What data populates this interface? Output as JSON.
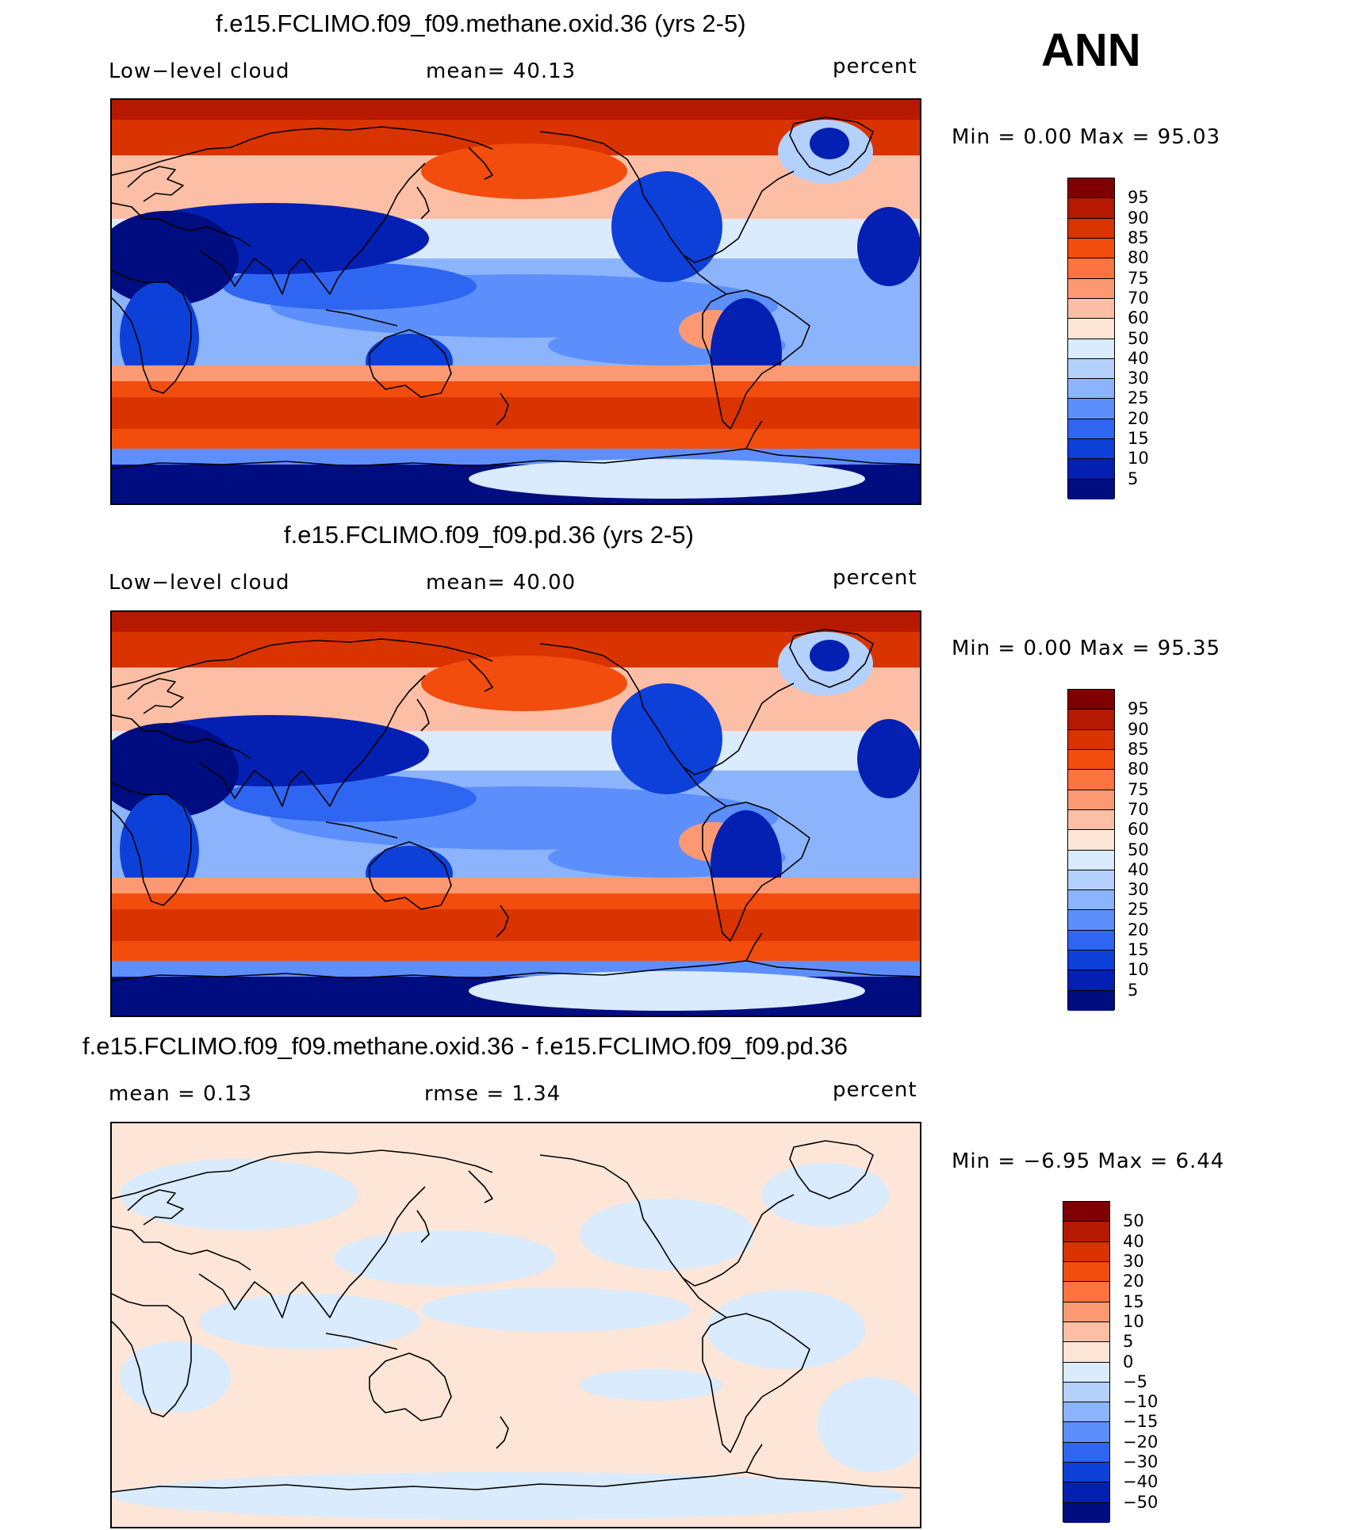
{
  "season_label": "ANN",
  "panels": [
    {
      "title": "f.e15.FCLIMO.f09_f09.methane.oxid.36 (yrs 2-5)",
      "left_label": "Low−level cloud",
      "center_label": "mean=   40.13",
      "right_label": "percent",
      "minmax": "Min =    0.00  Max =   95.03",
      "map_type": "field",
      "colorbar": {
        "ticks": [
          "95",
          "90",
          "85",
          "80",
          "75",
          "70",
          "60",
          "50",
          "40",
          "30",
          "25",
          "20",
          "15",
          "10",
          "5"
        ],
        "colors": [
          "#7f0000",
          "#b51a00",
          "#d93300",
          "#f24d0d",
          "#fc7340",
          "#fc9973",
          "#fcbfa6",
          "#fde6d8",
          "#d9ebfc",
          "#b3d1fc",
          "#8cb4fc",
          "#5c8ffc",
          "#2e66f2",
          "#0d40d9",
          "#0320b3",
          "#000d80"
        ]
      }
    },
    {
      "title": "f.e15.FCLIMO.f09_f09.pd.36 (yrs 2-5)",
      "left_label": "Low−level cloud",
      "center_label": "mean=   40.00",
      "right_label": "percent",
      "minmax": "Min =    0.00  Max =   95.35",
      "map_type": "field",
      "colorbar": {
        "ticks": [
          "95",
          "90",
          "85",
          "80",
          "75",
          "70",
          "60",
          "50",
          "40",
          "30",
          "25",
          "20",
          "15",
          "10",
          "5"
        ],
        "colors": [
          "#7f0000",
          "#b51a00",
          "#d93300",
          "#f24d0d",
          "#fc7340",
          "#fc9973",
          "#fcbfa6",
          "#fde6d8",
          "#d9ebfc",
          "#b3d1fc",
          "#8cb4fc",
          "#5c8ffc",
          "#2e66f2",
          "#0d40d9",
          "#0320b3",
          "#000d80"
        ]
      }
    },
    {
      "title": "f.e15.FCLIMO.f09_f09.methane.oxid.36 - f.e15.FCLIMO.f09_f09.pd.36",
      "left_label": "mean =     0.13",
      "center_label": "rmse =     1.34",
      "right_label": "percent",
      "minmax": "Min =   −6.95  Max =     6.44",
      "map_type": "diff",
      "colorbar": {
        "ticks": [
          "50",
          "40",
          "30",
          "20",
          "15",
          "10",
          "5",
          "0",
          "−5",
          "−10",
          "−15",
          "−20",
          "−30",
          "−40",
          "−50"
        ],
        "colors": [
          "#7f0000",
          "#b51a00",
          "#d93300",
          "#f24d0d",
          "#fc7340",
          "#fc9973",
          "#fcbfa6",
          "#fde6d8",
          "#d9ebfc",
          "#b3d1fc",
          "#8cb4fc",
          "#5c8ffc",
          "#2e66f2",
          "#0d40d9",
          "#0320b3",
          "#000d80"
        ]
      }
    }
  ]
}
